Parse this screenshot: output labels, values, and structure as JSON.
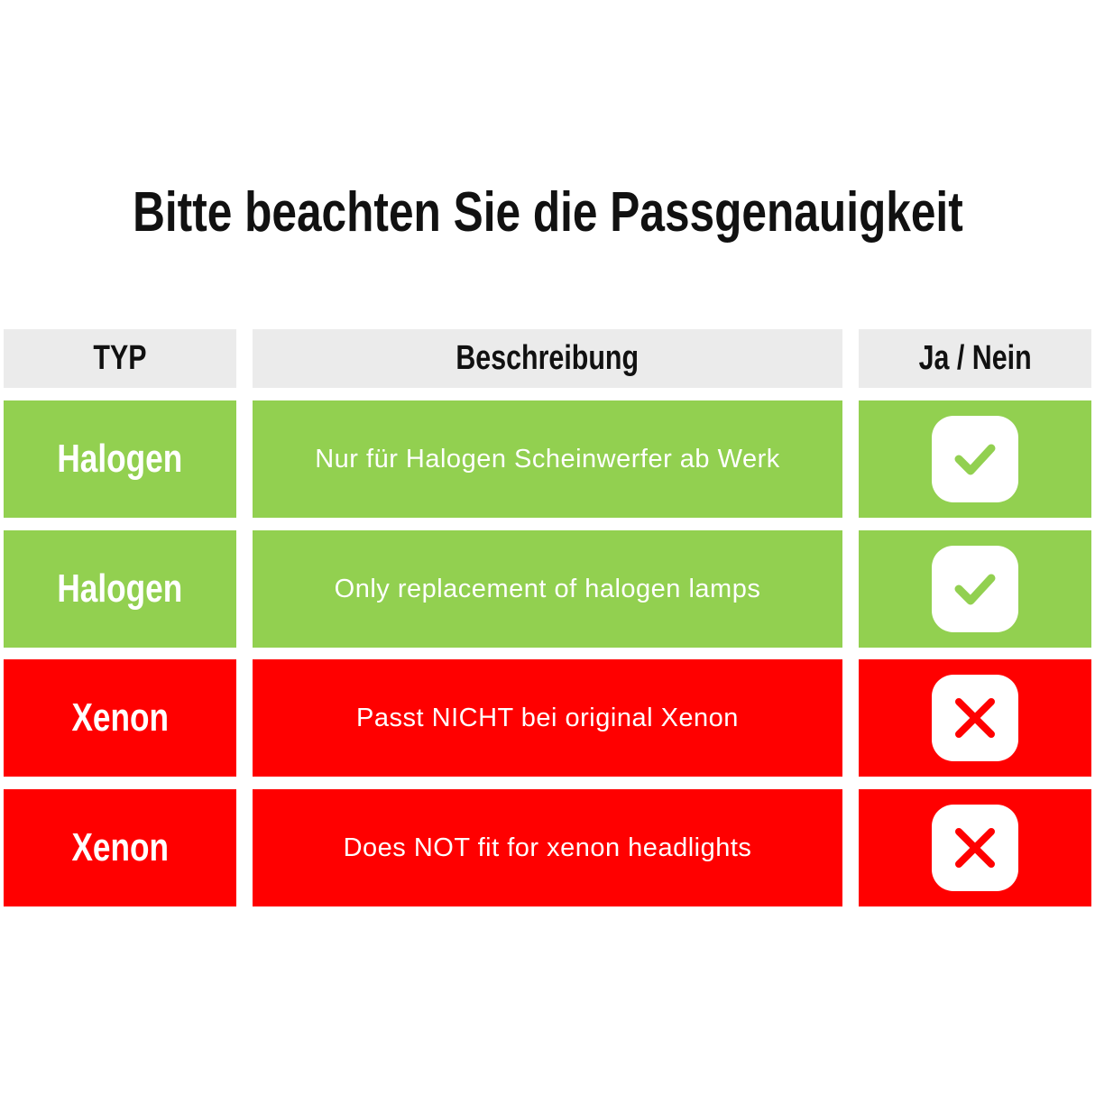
{
  "title": "Bitte beachten Sie die Passgenauigkeit",
  "headers": {
    "type": "TYP",
    "description": "Beschreibung",
    "yes_no": "Ja / Nein"
  },
  "colors": {
    "green": "#92d050",
    "red": "#ff0000",
    "header": "#ebebeb"
  },
  "rows": [
    {
      "type": "Halogen",
      "description": "Nur für Halogen Scheinwerfer ab Werk",
      "fits": true,
      "icon": "check-icon"
    },
    {
      "type": "Halogen",
      "description": "Only replacement of halogen lamps",
      "fits": true,
      "icon": "check-icon"
    },
    {
      "type": "Xenon",
      "description": "Passt NICHT bei original Xenon",
      "fits": false,
      "icon": "x-icon"
    },
    {
      "type": "Xenon",
      "description": "Does NOT fit for xenon headlights",
      "fits": false,
      "icon": "x-icon"
    }
  ]
}
